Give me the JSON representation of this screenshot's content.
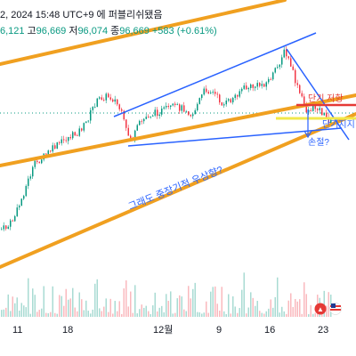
{
  "header": {
    "line1": "2, 2024 15:48 UTC+9 에 퍼블리쉬됐음",
    "open_value": "6,121",
    "high_label": "고",
    "high_value": "96,669",
    "low_label": "저",
    "low_value": "96,074",
    "close_label": "종",
    "close_value": "96,669",
    "change_value": "+583 (+0.61%)"
  },
  "colors": {
    "up": "#089981",
    "down": "#f23645",
    "trend_channel": "#f0a020",
    "triangle": "#2962ff",
    "support_line": "#f2e84b",
    "resistance_line": "#e53935",
    "price_line": "#089981",
    "annotation_text": "#2962ff"
  },
  "chart_data": {
    "type": "candlestick",
    "y_axis_visible": false,
    "grid": false,
    "x_ticks": [
      "11",
      "18",
      "12월",
      "9",
      "16",
      "23"
    ],
    "annotations": [
      {
        "text": "단기 저항",
        "color": "#e53935"
      },
      {
        "text": "단기지지",
        "color": "#2962ff"
      },
      {
        "text": "손절?",
        "color": "#2962ff"
      },
      {
        "text": "그래도 중장기적 우상향?",
        "color": "#2962ff"
      }
    ],
    "drawings": [
      {
        "kind": "ascending_channel",
        "color": "#f0a020"
      },
      {
        "kind": "triangle",
        "color": "#2962ff"
      },
      {
        "kind": "horizontal_resistance",
        "color": "#e53935"
      },
      {
        "kind": "horizontal_support",
        "color": "#f2e84b"
      }
    ]
  }
}
